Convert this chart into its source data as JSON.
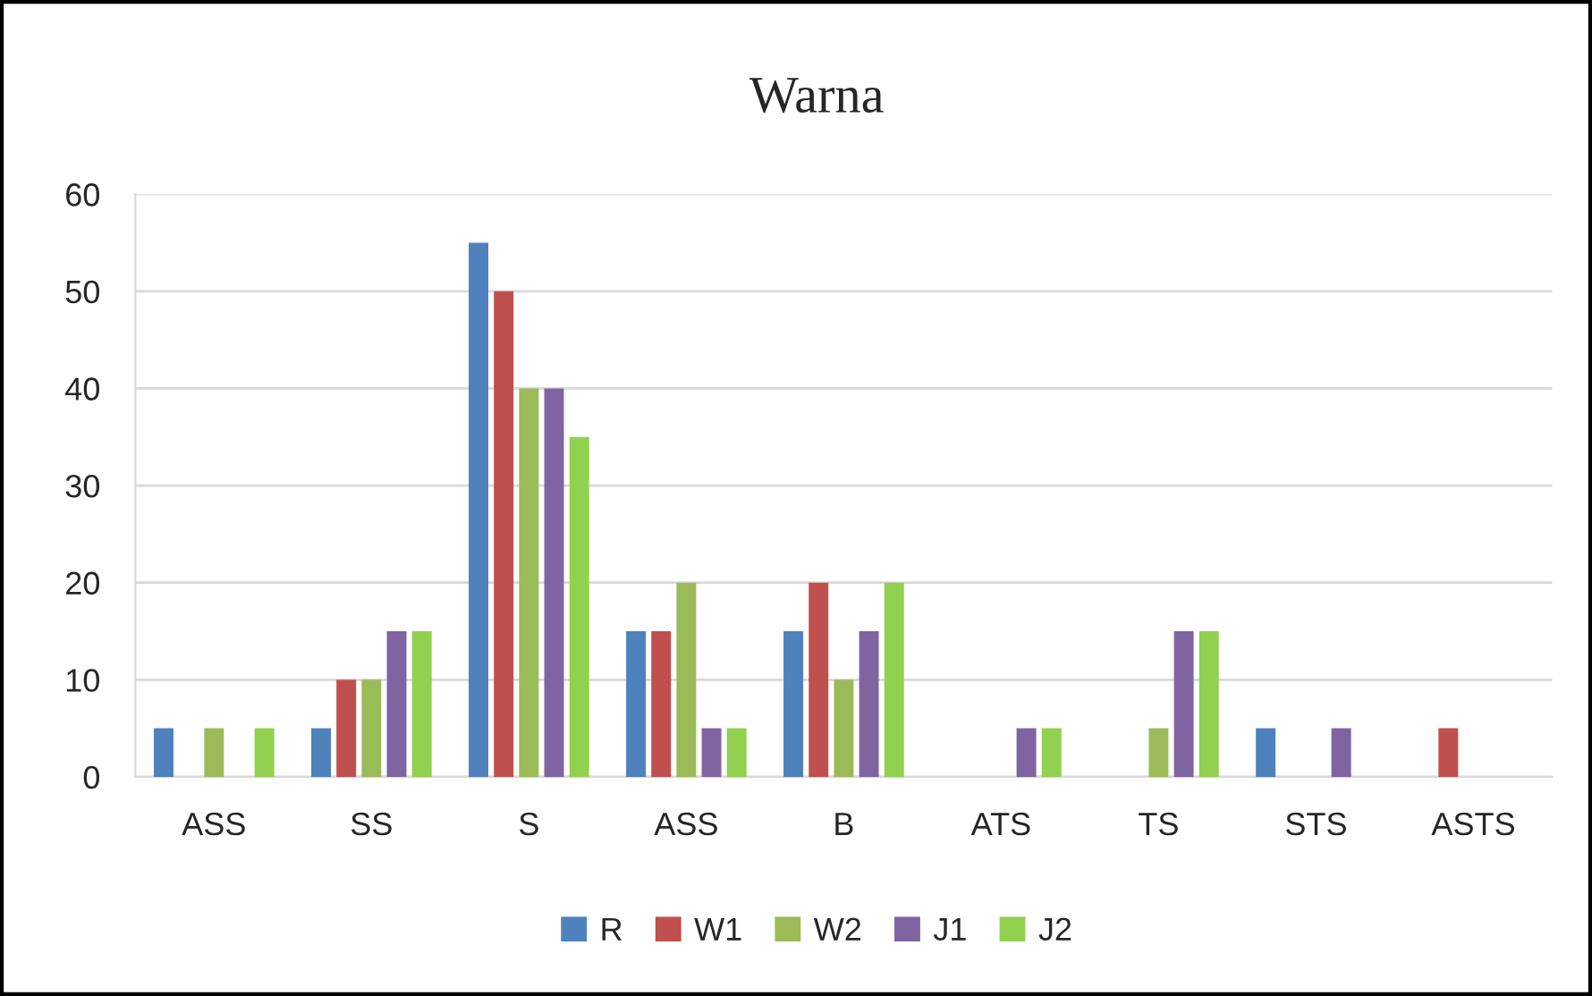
{
  "chart_data": {
    "type": "bar",
    "title": "Warna",
    "categories": [
      "ASS",
      "SS",
      "S",
      "ASS",
      "B",
      "ATS",
      "TS",
      "STS",
      "ASTS"
    ],
    "series": [
      {
        "name": "R",
        "color": "#4f81bd",
        "values": [
          5,
          5,
          55,
          15,
          15,
          0,
          0,
          5,
          0
        ]
      },
      {
        "name": "W1",
        "color": "#c0504d",
        "values": [
          0,
          10,
          50,
          15,
          20,
          0,
          0,
          0,
          5
        ]
      },
      {
        "name": "W2",
        "color": "#9bbb59",
        "values": [
          5,
          10,
          40,
          20,
          10,
          0,
          5,
          0,
          0
        ]
      },
      {
        "name": "J1",
        "color": "#8064a2",
        "values": [
          0,
          15,
          40,
          5,
          15,
          5,
          15,
          5,
          0
        ]
      },
      {
        "name": "J2",
        "color": "#92d050",
        "values": [
          5,
          15,
          35,
          5,
          20,
          5,
          15,
          0,
          0
        ]
      }
    ],
    "ylim": [
      0,
      60
    ],
    "yticks": [
      0,
      10,
      20,
      30,
      40,
      50,
      60
    ],
    "grid": "y",
    "legend": "bottom"
  }
}
